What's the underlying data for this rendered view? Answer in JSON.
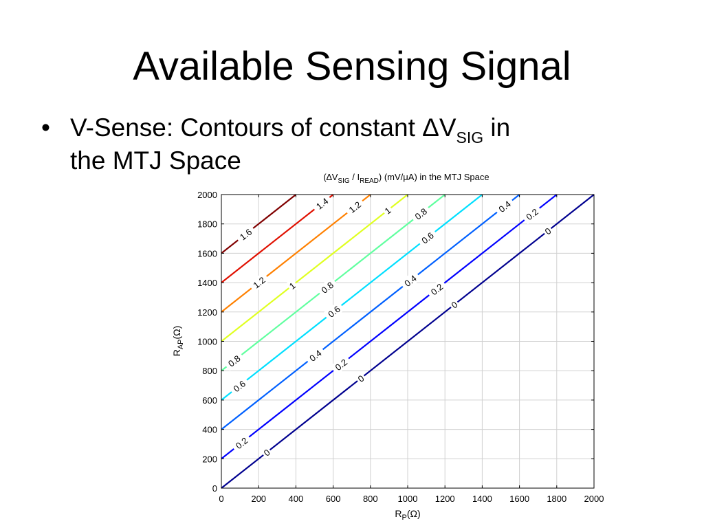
{
  "slide": {
    "title": "Available Sensing Signal",
    "bullet": {
      "symbol": "•",
      "text_prefix": "V-Sense: Contours of constant ΔV",
      "subscript": "SIG",
      "text_suffix": " in",
      "line2": "the MTJ Space"
    }
  },
  "chart_data": {
    "type": "line",
    "title": {
      "open": "(",
      "delta": "∆",
      "v": "V",
      "v_sub": "SIG",
      "mid": " / I",
      "i_sub": "READ",
      "close": ") (mV/",
      "mu": "μ",
      "end": "A) in the MTJ Space"
    },
    "xlabel": {
      "main": "R",
      "sub": "P",
      "unit": "(Ω)"
    },
    "ylabel": {
      "main": "R",
      "sub": "AP",
      "unit": "(Ω)"
    },
    "xlim": [
      0,
      2000
    ],
    "ylim": [
      0,
      2000
    ],
    "xticks": [
      "0",
      "200",
      "400",
      "600",
      "800",
      "1000",
      "1200",
      "1400",
      "1600",
      "1800",
      "2000"
    ],
    "yticks": [
      "0",
      "200",
      "400",
      "600",
      "800",
      "1000",
      "1200",
      "1400",
      "1600",
      "1800",
      "2000"
    ],
    "grid": true,
    "series": [
      {
        "level": "0",
        "color": "#00008f",
        "points": [
          [
            0,
            0
          ],
          [
            2000,
            2000
          ]
        ],
        "labels": [
          [
            243,
            243
          ],
          [
            748,
            748
          ],
          [
            1250,
            1250
          ],
          [
            1752,
            1752
          ]
        ]
      },
      {
        "level": "0.2",
        "color": "#0000ff",
        "points": [
          [
            0,
            200
          ],
          [
            1800,
            2000
          ]
        ],
        "labels": [
          [
            108,
            308
          ],
          [
            642,
            842
          ],
          [
            1156,
            1356
          ],
          [
            1667,
            1867
          ]
        ]
      },
      {
        "level": "0.4",
        "color": "#0060ff",
        "points": [
          [
            0,
            400
          ],
          [
            1600,
            2000
          ]
        ],
        "labels": [
          [
            504,
            904
          ],
          [
            1014,
            1414
          ],
          [
            1520,
            1920
          ]
        ]
      },
      {
        "level": "0.6",
        "color": "#00dfff",
        "points": [
          [
            0,
            600
          ],
          [
            1400,
            2000
          ]
        ],
        "labels": [
          [
            96,
            696
          ],
          [
            604,
            1204
          ],
          [
            1106,
            1706
          ]
        ]
      },
      {
        "level": "0.8",
        "color": "#60ff9f",
        "points": [
          [
            0,
            800
          ],
          [
            1200,
            2000
          ]
        ],
        "labels": [
          [
            68,
            868
          ],
          [
            568,
            1368
          ],
          [
            1070,
            1870
          ]
        ]
      },
      {
        "level": "1",
        "color": "#e0ff20",
        "points": [
          [
            0,
            1000
          ],
          [
            1000,
            2000
          ]
        ],
        "labels": [
          [
            380,
            1380
          ],
          [
            892,
            1892
          ]
        ]
      },
      {
        "level": "1.2",
        "color": "#ff8000",
        "points": [
          [
            0,
            1200
          ],
          [
            800,
            2000
          ]
        ],
        "labels": [
          [
            202,
            1402
          ],
          [
            716,
            1916
          ]
        ]
      },
      {
        "level": "1.4",
        "color": "#e01000",
        "points": [
          [
            0,
            1400
          ],
          [
            600,
            2000
          ]
        ],
        "labels": [
          [
            540,
            1940
          ]
        ]
      },
      {
        "level": "1.6",
        "color": "#800000",
        "points": [
          [
            0,
            1600
          ],
          [
            400,
            2000
          ]
        ],
        "labels": [
          [
            130,
            1730
          ]
        ]
      }
    ]
  }
}
